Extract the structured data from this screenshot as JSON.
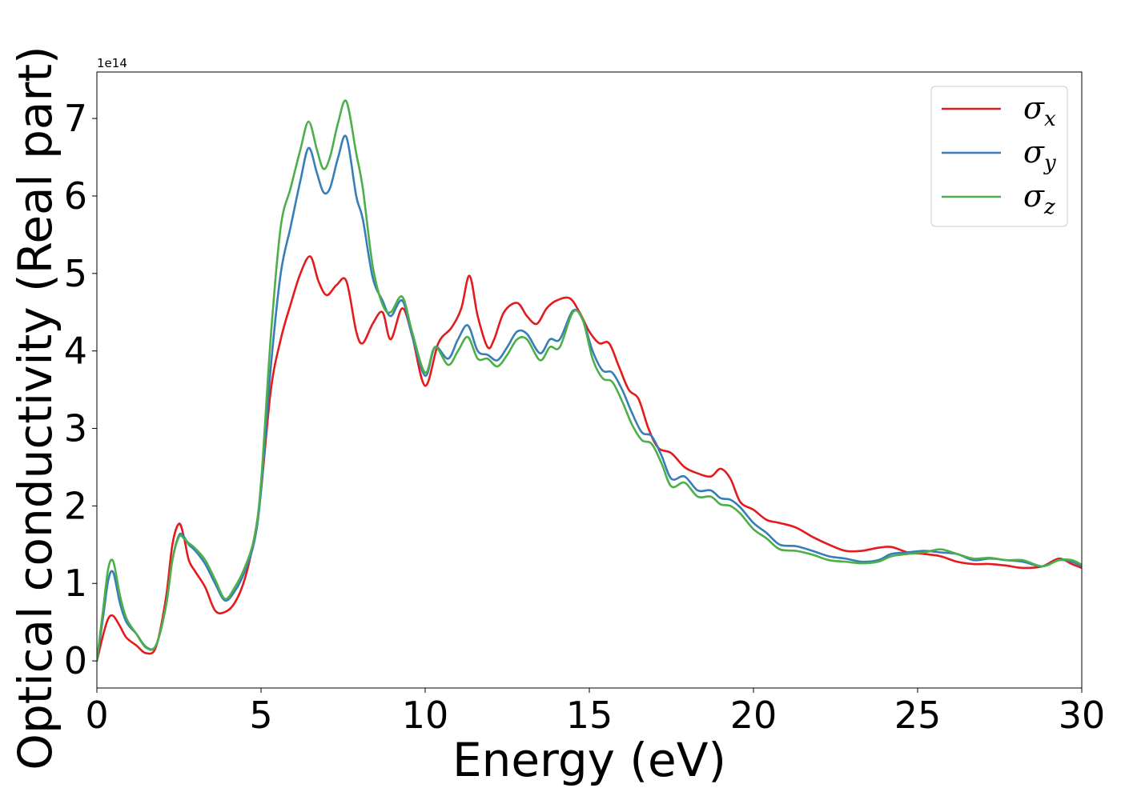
{
  "chart_data": {
    "type": "line",
    "title": "",
    "xlabel": "Energy (eV)",
    "ylabel": "Optical conductivity (Real part)",
    "y_offset_text": "1e14",
    "y_scale_factor": 100000000000000.0,
    "xlim": [
      0,
      30
    ],
    "ylim": [
      -0.35,
      7.6
    ],
    "x_ticks": [
      0,
      5,
      10,
      15,
      20,
      25,
      30
    ],
    "y_ticks": [
      0,
      1,
      2,
      3,
      4,
      5,
      6,
      7
    ],
    "grid": false,
    "legend_position": "top-right",
    "series": [
      {
        "name": "σx",
        "legend_symbol": "σ",
        "legend_sub": "x",
        "color": "#e41a1c",
        "x": [
          0,
          0.2,
          0.35,
          0.5,
          0.7,
          0.9,
          1.2,
          1.5,
          1.8,
          2.1,
          2.3,
          2.5,
          2.65,
          2.8,
          3.0,
          3.3,
          3.6,
          3.9,
          4.2,
          4.5,
          4.8,
          5.0,
          5.3,
          5.6,
          5.9,
          6.2,
          6.5,
          6.75,
          7.0,
          7.3,
          7.6,
          7.9,
          8.1,
          8.4,
          8.7,
          8.95,
          9.3,
          9.6,
          10.0,
          10.4,
          10.8,
          11.1,
          11.35,
          11.6,
          11.9,
          12.1,
          12.4,
          12.8,
          13.1,
          13.4,
          13.7,
          14.0,
          14.4,
          14.7,
          15.0,
          15.3,
          15.6,
          15.9,
          16.2,
          16.5,
          16.8,
          17.1,
          17.5,
          17.9,
          18.3,
          18.7,
          19.0,
          19.3,
          19.6,
          20.0,
          20.4,
          20.8,
          21.3,
          21.8,
          22.3,
          22.8,
          23.3,
          23.8,
          24.2,
          24.7,
          25.2,
          25.7,
          26.2,
          26.7,
          27.2,
          27.7,
          28.2,
          28.8,
          29.3,
          29.7,
          30.0
        ],
        "y": [
          0.0,
          0.35,
          0.55,
          0.58,
          0.45,
          0.3,
          0.2,
          0.1,
          0.18,
          0.8,
          1.5,
          1.77,
          1.6,
          1.3,
          1.15,
          0.95,
          0.65,
          0.63,
          0.75,
          1.05,
          1.6,
          2.2,
          3.5,
          4.15,
          4.6,
          5.0,
          5.22,
          4.9,
          4.72,
          4.85,
          4.9,
          4.25,
          4.1,
          4.35,
          4.5,
          4.15,
          4.55,
          4.2,
          3.55,
          4.1,
          4.3,
          4.55,
          4.97,
          4.45,
          4.05,
          4.15,
          4.5,
          4.62,
          4.45,
          4.35,
          4.55,
          4.65,
          4.68,
          4.5,
          4.25,
          4.1,
          4.1,
          3.8,
          3.5,
          3.38,
          3.0,
          2.75,
          2.68,
          2.5,
          2.42,
          2.38,
          2.48,
          2.35,
          2.05,
          1.95,
          1.82,
          1.78,
          1.72,
          1.6,
          1.5,
          1.42,
          1.42,
          1.46,
          1.47,
          1.4,
          1.38,
          1.35,
          1.28,
          1.25,
          1.25,
          1.23,
          1.2,
          1.22,
          1.32,
          1.25,
          1.2
        ]
      },
      {
        "name": "σy",
        "legend_symbol": "σ",
        "legend_sub": "y",
        "color": "#377eb8",
        "x": [
          0,
          0.2,
          0.35,
          0.5,
          0.7,
          0.9,
          1.2,
          1.5,
          1.8,
          2.1,
          2.3,
          2.5,
          2.65,
          2.8,
          3.0,
          3.3,
          3.6,
          3.9,
          4.2,
          4.5,
          4.8,
          5.0,
          5.3,
          5.6,
          5.9,
          6.2,
          6.45,
          6.7,
          6.9,
          7.1,
          7.35,
          7.6,
          7.9,
          8.1,
          8.4,
          8.7,
          8.95,
          9.3,
          9.6,
          10.0,
          10.3,
          10.7,
          11.0,
          11.3,
          11.6,
          11.9,
          12.2,
          12.5,
          12.8,
          13.1,
          13.5,
          13.8,
          14.1,
          14.5,
          14.8,
          15.1,
          15.4,
          15.7,
          16.0,
          16.3,
          16.6,
          16.9,
          17.2,
          17.5,
          17.9,
          18.3,
          18.7,
          19.0,
          19.3,
          19.6,
          20.0,
          20.4,
          20.8,
          21.3,
          21.8,
          22.3,
          22.8,
          23.3,
          23.8,
          24.2,
          24.7,
          25.2,
          25.7,
          26.2,
          26.7,
          27.2,
          27.7,
          28.2,
          28.8,
          29.3,
          29.7,
          30.0
        ],
        "y": [
          0.0,
          0.6,
          1.05,
          1.14,
          0.75,
          0.5,
          0.35,
          0.18,
          0.2,
          0.7,
          1.3,
          1.62,
          1.6,
          1.5,
          1.42,
          1.25,
          1.0,
          0.78,
          0.9,
          1.15,
          1.55,
          2.2,
          3.8,
          5.0,
          5.6,
          6.2,
          6.62,
          6.3,
          6.05,
          6.1,
          6.5,
          6.76,
          6.0,
          5.7,
          4.95,
          4.65,
          4.45,
          4.65,
          4.2,
          3.68,
          4.05,
          3.9,
          4.15,
          4.33,
          4.0,
          3.95,
          3.88,
          4.05,
          4.25,
          4.22,
          3.97,
          4.15,
          4.15,
          4.52,
          4.4,
          4.0,
          3.75,
          3.72,
          3.5,
          3.2,
          2.95,
          2.9,
          2.65,
          2.35,
          2.38,
          2.2,
          2.2,
          2.1,
          2.08,
          1.98,
          1.78,
          1.65,
          1.5,
          1.48,
          1.42,
          1.35,
          1.32,
          1.28,
          1.3,
          1.38,
          1.4,
          1.42,
          1.4,
          1.38,
          1.3,
          1.32,
          1.3,
          1.28,
          1.22,
          1.3,
          1.28,
          1.22
        ]
      },
      {
        "name": "σz",
        "legend_symbol": "σ",
        "legend_sub": "z",
        "color": "#4daf4a",
        "x": [
          0,
          0.2,
          0.35,
          0.5,
          0.7,
          0.9,
          1.2,
          1.5,
          1.8,
          2.1,
          2.3,
          2.5,
          2.65,
          2.8,
          3.0,
          3.3,
          3.6,
          3.9,
          4.2,
          4.5,
          4.8,
          5.0,
          5.3,
          5.6,
          5.9,
          6.2,
          6.45,
          6.7,
          6.9,
          7.1,
          7.35,
          7.6,
          7.9,
          8.1,
          8.4,
          8.7,
          8.95,
          9.3,
          9.6,
          10.0,
          10.3,
          10.7,
          11.0,
          11.3,
          11.6,
          11.9,
          12.2,
          12.5,
          12.8,
          13.1,
          13.5,
          13.8,
          14.1,
          14.5,
          14.8,
          15.1,
          15.4,
          15.7,
          16.0,
          16.3,
          16.6,
          16.9,
          17.2,
          17.5,
          17.9,
          18.3,
          18.7,
          19.0,
          19.3,
          19.6,
          20.0,
          20.4,
          20.8,
          21.3,
          21.8,
          22.3,
          22.8,
          23.3,
          23.8,
          24.2,
          24.7,
          25.2,
          25.7,
          26.2,
          26.7,
          27.2,
          27.7,
          28.2,
          28.8,
          29.3,
          29.7,
          30.0
        ],
        "y": [
          0.0,
          0.7,
          1.2,
          1.28,
          0.85,
          0.55,
          0.35,
          0.17,
          0.2,
          0.7,
          1.3,
          1.6,
          1.58,
          1.52,
          1.45,
          1.3,
          1.05,
          0.8,
          0.95,
          1.2,
          1.6,
          2.3,
          4.2,
          5.6,
          6.1,
          6.6,
          6.96,
          6.6,
          6.35,
          6.5,
          6.95,
          7.22,
          6.55,
          6.1,
          5.1,
          4.6,
          4.5,
          4.7,
          4.25,
          3.72,
          4.05,
          3.82,
          4.0,
          4.18,
          3.9,
          3.9,
          3.8,
          3.95,
          4.15,
          4.15,
          3.88,
          4.05,
          4.05,
          4.5,
          4.4,
          3.9,
          3.65,
          3.6,
          3.35,
          3.05,
          2.85,
          2.8,
          2.55,
          2.25,
          2.3,
          2.12,
          2.12,
          2.02,
          2.0,
          1.9,
          1.7,
          1.58,
          1.44,
          1.42,
          1.37,
          1.3,
          1.28,
          1.26,
          1.28,
          1.35,
          1.38,
          1.4,
          1.44,
          1.38,
          1.32,
          1.33,
          1.3,
          1.3,
          1.22,
          1.3,
          1.3,
          1.24
        ]
      }
    ]
  }
}
